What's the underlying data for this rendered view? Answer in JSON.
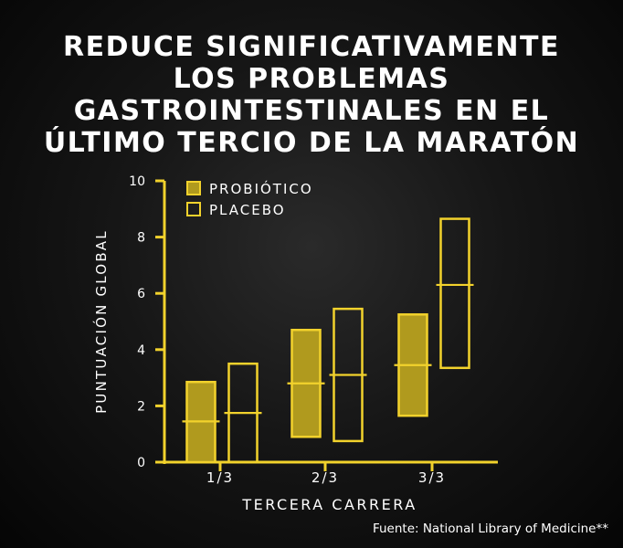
{
  "title_lines": [
    "REDUCE SIGNIFICATIVAMENTE",
    "LOS PROBLEMAS",
    "GASTROINTESTINALES EN EL",
    "ÚLTIMO TERCIO DE LA MARATÓN"
  ],
  "source": "Fuente: National Library of Medicine**",
  "colors": {
    "accent": "#f2d22c",
    "fill": "#b09a1e",
    "text": "#ffffff",
    "background": "#111111"
  },
  "chart_data": {
    "type": "boxplot",
    "xlabel": "TERCERA CARRERA",
    "ylabel": "PUNTUACIÓN GLOBAL",
    "ylim": [
      0,
      10
    ],
    "yticks": [
      0,
      2,
      4,
      6,
      8,
      10
    ],
    "categories": [
      "1/3",
      "2/3",
      "3/3"
    ],
    "legend_position": "top-left",
    "grid": false,
    "series": [
      {
        "name": "PROBIÓTICO",
        "style": "filled",
        "boxes": [
          {
            "low": 0,
            "median": 1.45,
            "high": 2.85
          },
          {
            "low": 0.9,
            "median": 2.8,
            "high": 4.7
          },
          {
            "low": 1.65,
            "median": 3.45,
            "high": 5.25
          }
        ]
      },
      {
        "name": "PLACEBO",
        "style": "outline",
        "boxes": [
          {
            "low": 0,
            "median": 1.75,
            "high": 3.5
          },
          {
            "low": 0.75,
            "median": 3.1,
            "high": 5.45
          },
          {
            "low": 3.35,
            "median": 6.3,
            "high": 8.65
          }
        ]
      }
    ]
  }
}
